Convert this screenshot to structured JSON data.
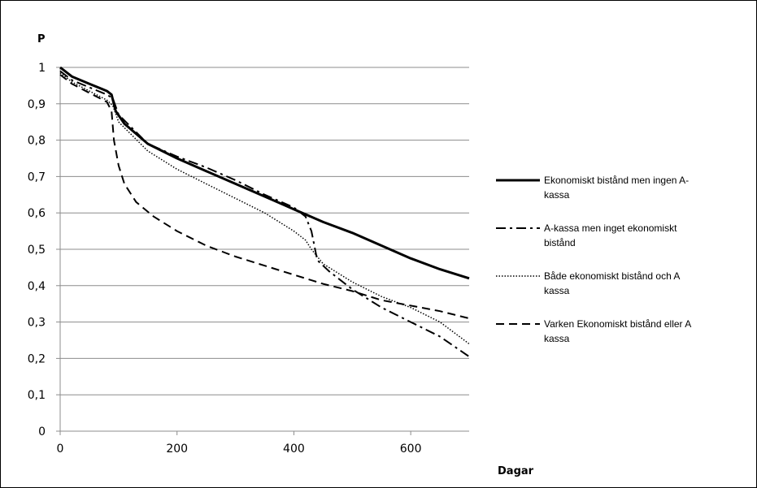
{
  "chart_data": {
    "type": "line",
    "title": "",
    "ylabel": "P",
    "xlabel": "Dagar",
    "xlim": [
      0,
      700
    ],
    "ylim": [
      0,
      1
    ],
    "x_ticks": [
      {
        "value": 0,
        "label": "0"
      },
      {
        "value": 200,
        "label": "200"
      },
      {
        "value": 400,
        "label": "400"
      },
      {
        "value": 600,
        "label": "600"
      }
    ],
    "y_ticks": [
      {
        "value": 0,
        "label": "0"
      },
      {
        "value": 0.1,
        "label": "0,1"
      },
      {
        "value": 0.2,
        "label": "0,2"
      },
      {
        "value": 0.3,
        "label": "0,3"
      },
      {
        "value": 0.4,
        "label": "0,4"
      },
      {
        "value": 0.5,
        "label": "0,5"
      },
      {
        "value": 0.6,
        "label": "0,6"
      },
      {
        "value": 0.7,
        "label": "0,7"
      },
      {
        "value": 0.8,
        "label": "0,8"
      },
      {
        "value": 0.9,
        "label": "0,9"
      },
      {
        "value": 1,
        "label": "1"
      }
    ],
    "grid": "horizontal",
    "legend_position": "right",
    "series": [
      {
        "name": "Ekonomiskt bistånd men ingen A-kassa",
        "legend_lines": [
          "Ekonomiskt bistånd men ingen A-",
          "kassa"
        ],
        "style": "solid",
        "x": [
          0,
          20,
          50,
          80,
          88,
          95,
          110,
          150,
          200,
          250,
          300,
          350,
          400,
          450,
          500,
          550,
          600,
          650,
          700
        ],
        "y": [
          1.0,
          0.975,
          0.955,
          0.935,
          0.925,
          0.88,
          0.845,
          0.79,
          0.75,
          0.715,
          0.68,
          0.645,
          0.61,
          0.575,
          0.545,
          0.51,
          0.475,
          0.445,
          0.42
        ]
      },
      {
        "name": "A-kassa men inget ekonomiskt bistånd",
        "legend_lines": [
          "A-kassa men inget ekonomiskt",
          "bistånd"
        ],
        "style": "dashdot",
        "x": [
          0,
          20,
          50,
          80,
          90,
          100,
          150,
          200,
          250,
          300,
          350,
          400,
          420,
          430,
          440,
          460,
          500,
          550,
          600,
          650,
          700
        ],
        "y": [
          0.99,
          0.965,
          0.945,
          0.925,
          0.915,
          0.87,
          0.79,
          0.755,
          0.725,
          0.69,
          0.65,
          0.615,
          0.59,
          0.55,
          0.47,
          0.44,
          0.39,
          0.34,
          0.3,
          0.26,
          0.205
        ]
      },
      {
        "name": "Både ekonomiskt bistånd och A kassa",
        "legend_lines": [
          "Både ekonomiskt bistånd och A",
          "kassa"
        ],
        "style": "dotted",
        "x": [
          0,
          20,
          50,
          80,
          90,
          100,
          150,
          200,
          250,
          300,
          350,
          400,
          420,
          430,
          450,
          500,
          550,
          600,
          650,
          700
        ],
        "y": [
          0.985,
          0.96,
          0.935,
          0.91,
          0.895,
          0.85,
          0.77,
          0.72,
          0.68,
          0.64,
          0.6,
          0.55,
          0.525,
          0.5,
          0.46,
          0.41,
          0.37,
          0.34,
          0.3,
          0.24
        ]
      },
      {
        "name": "Varken Ekonomiskt bistånd eller A kassa",
        "legend_lines": [
          "Varken Ekonomiskt bistånd eller A",
          "kassa"
        ],
        "style": "dashed",
        "x": [
          0,
          20,
          50,
          80,
          88,
          92,
          100,
          110,
          130,
          160,
          200,
          250,
          300,
          350,
          400,
          450,
          500,
          550,
          600,
          650,
          700
        ],
        "y": [
          0.98,
          0.955,
          0.93,
          0.905,
          0.88,
          0.8,
          0.73,
          0.68,
          0.63,
          0.59,
          0.55,
          0.51,
          0.48,
          0.455,
          0.43,
          0.405,
          0.385,
          0.36,
          0.345,
          0.33,
          0.31
        ]
      }
    ]
  }
}
